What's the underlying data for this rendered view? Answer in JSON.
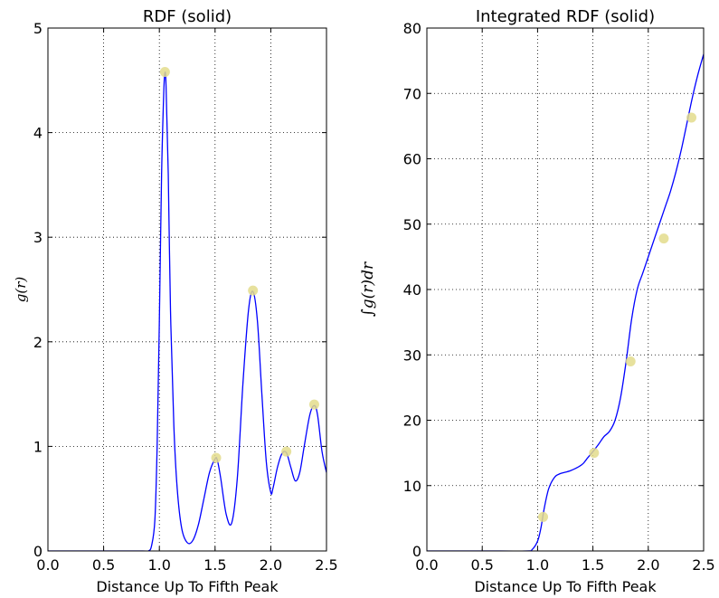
{
  "chart_data": [
    {
      "type": "line",
      "title": "RDF (solid)",
      "xlabel": "Distance Up To Fifth Peak",
      "ylabel": "g(r)",
      "xlim": [
        0.0,
        2.5
      ],
      "ylim": [
        0,
        5
      ],
      "xticks": [
        "0.0",
        "0.5",
        "1.0",
        "1.5",
        "2.0",
        "2.5"
      ],
      "yticks": [
        "0",
        "1",
        "2",
        "3",
        "4",
        "5"
      ],
      "grid": true,
      "series": [
        {
          "line_color": "#0000ff",
          "x": [
            0.0,
            0.5,
            0.85,
            0.9,
            0.93,
            0.96,
            0.98,
            1.0,
            1.02,
            1.04,
            1.05,
            1.06,
            1.08,
            1.1,
            1.13,
            1.16,
            1.2,
            1.25,
            1.3,
            1.35,
            1.4,
            1.45,
            1.5,
            1.52,
            1.55,
            1.6,
            1.65,
            1.7,
            1.75,
            1.8,
            1.84,
            1.88,
            1.92,
            1.96,
            2.0,
            2.02,
            2.06,
            2.1,
            2.14,
            2.18,
            2.22,
            2.26,
            2.3,
            2.35,
            2.39,
            2.42,
            2.46,
            2.5
          ],
          "y": [
            0.0,
            0.0,
            0.0,
            0.0,
            0.05,
            0.3,
            1.0,
            2.2,
            3.6,
            4.4,
            4.57,
            4.45,
            3.6,
            2.3,
            1.2,
            0.6,
            0.22,
            0.08,
            0.1,
            0.25,
            0.5,
            0.75,
            0.88,
            0.87,
            0.7,
            0.35,
            0.27,
            0.7,
            1.6,
            2.3,
            2.48,
            2.2,
            1.5,
            0.85,
            0.56,
            0.6,
            0.8,
            0.93,
            0.94,
            0.8,
            0.67,
            0.75,
            1.0,
            1.3,
            1.39,
            1.3,
            0.95,
            0.75
          ]
        }
      ],
      "markers": {
        "color": "#e3dc8c",
        "x": [
          1.05,
          1.51,
          1.84,
          2.14,
          2.39
        ],
        "y": [
          4.58,
          0.89,
          2.49,
          0.95,
          1.4
        ]
      }
    },
    {
      "type": "line",
      "title": "Integrated RDF (solid)",
      "xlabel": "Distance Up To Fifth Peak",
      "ylabel": "∫g(r)dr",
      "xlim": [
        0.0,
        2.5
      ],
      "ylim": [
        0,
        80
      ],
      "xticks": [
        "0.0",
        "0.5",
        "1.0",
        "1.5",
        "2.0",
        "2.5"
      ],
      "yticks": [
        "0",
        "10",
        "20",
        "30",
        "40",
        "50",
        "60",
        "70",
        "80"
      ],
      "grid": true,
      "series": [
        {
          "line_color": "#0000ff",
          "x": [
            0.0,
            0.5,
            0.9,
            0.95,
            1.0,
            1.03,
            1.06,
            1.1,
            1.15,
            1.2,
            1.3,
            1.4,
            1.45,
            1.5,
            1.55,
            1.6,
            1.65,
            1.7,
            1.75,
            1.8,
            1.85,
            1.9,
            1.95,
            2.0,
            2.05,
            2.1,
            2.15,
            2.2,
            2.25,
            2.3,
            2.35,
            2.4,
            2.45,
            2.5
          ],
          "y": [
            0.0,
            0.0,
            0.0,
            0.2,
            1.5,
            3.5,
            6.5,
            9.5,
            11.2,
            11.8,
            12.3,
            13.2,
            14.2,
            15.2,
            16.3,
            17.5,
            18.3,
            20.0,
            23.5,
            29.0,
            35.5,
            40.0,
            42.5,
            45.0,
            47.5,
            50.0,
            52.5,
            55.0,
            58.0,
            61.5,
            65.5,
            69.5,
            73.0,
            76.0
          ]
        }
      ],
      "markers": {
        "color": "#e3dc8c",
        "x": [
          1.05,
          1.51,
          1.84,
          2.14,
          2.39
        ],
        "y": [
          5.2,
          15.0,
          29.0,
          47.8,
          66.3
        ]
      }
    }
  ]
}
